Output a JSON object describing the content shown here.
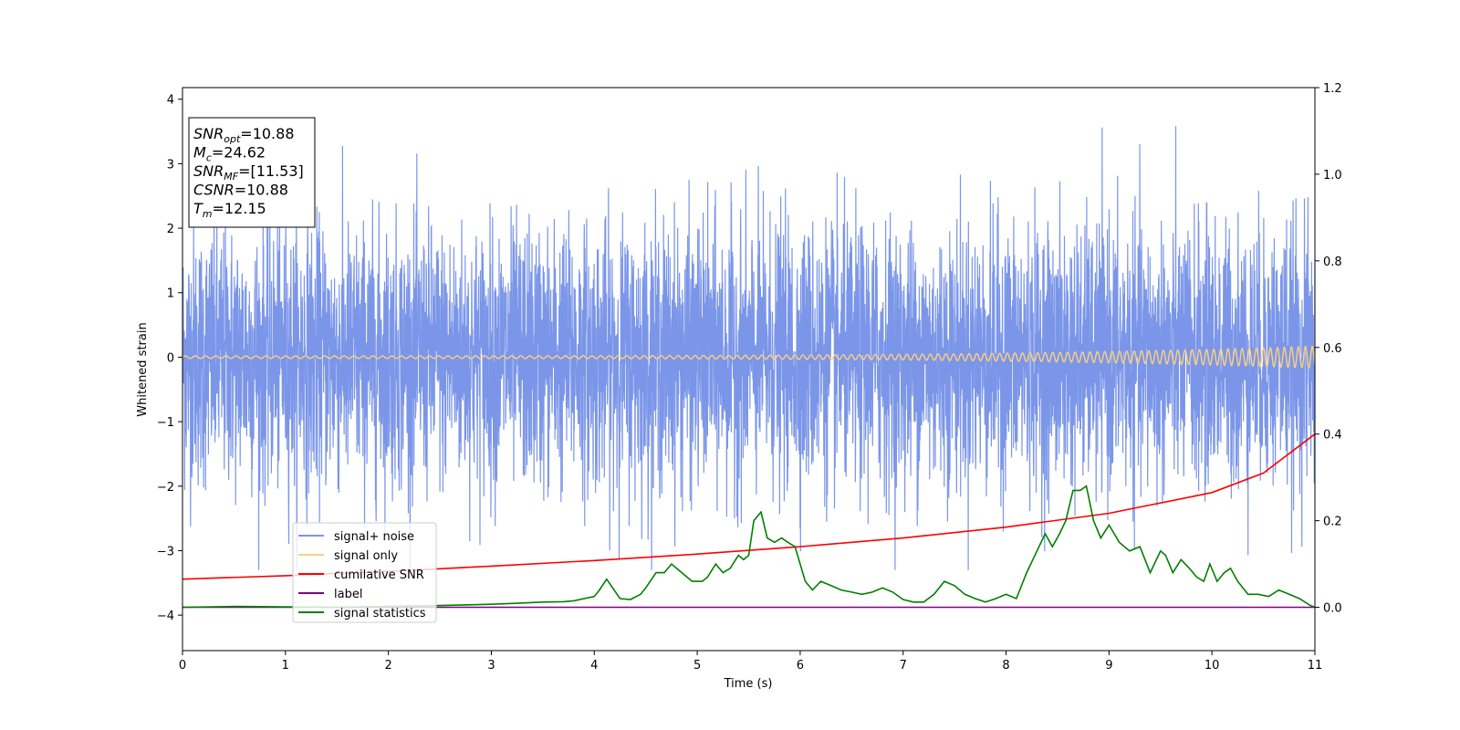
{
  "chart_data": {
    "type": "line",
    "title": "",
    "xlabel": "Time (s)",
    "ylabel": "Whitened strain",
    "xlim": [
      0,
      11
    ],
    "ylim_left": [
      -4.55,
      4.18
    ],
    "ylim_right": [
      -0.1,
      1.2
    ],
    "x_ticks": [
      "0",
      "1",
      "2",
      "3",
      "4",
      "5",
      "6",
      "7",
      "8",
      "9",
      "10",
      "11"
    ],
    "y_ticks_left": [
      "−4",
      "−3",
      "−2",
      "−1",
      "0",
      "1",
      "2",
      "3",
      "4"
    ],
    "y_ticks_right": [
      "0.0",
      "0.2",
      "0.4",
      "0.6",
      "0.8",
      "1.0",
      "1.2"
    ],
    "grid": false,
    "legend_position": "lower-left",
    "info_box": {
      "lines": [
        {
          "base": "SNR",
          "sub": "opt",
          "value": "=10.88"
        },
        {
          "base": "M",
          "sub": "c",
          "value": "=24.62"
        },
        {
          "base": "SNR",
          "sub": "MF",
          "value": "=[11.53]"
        },
        {
          "base": "CSNR",
          "sub": "",
          "value": "=10.88"
        },
        {
          "base": "T",
          "sub": "m",
          "value": "=12.15"
        }
      ]
    },
    "series": [
      {
        "name": "signal+ noise",
        "axis": "left",
        "color": "#7b96e8",
        "description_range": [
          -3.3,
          3.8
        ]
      },
      {
        "name": "signal only",
        "axis": "left",
        "color": "#ffcf7f",
        "amplitude_start": 0.02,
        "amplitude_end": 0.17
      },
      {
        "name": "cumilative SNR",
        "axis": "right",
        "color": "#ff0000",
        "x": [
          0,
          1,
          2,
          3,
          4,
          5,
          6,
          7,
          8,
          9,
          10,
          10.5,
          11
        ],
        "y": [
          0.065,
          0.073,
          0.083,
          0.095,
          0.108,
          0.123,
          0.14,
          0.16,
          0.185,
          0.217,
          0.265,
          0.31,
          0.4
        ]
      },
      {
        "name": "label",
        "axis": "right",
        "color": "#800080",
        "x": [
          0,
          11
        ],
        "y": [
          0.0,
          0.0
        ]
      },
      {
        "name": "signal statistics",
        "axis": "right",
        "color": "#008000",
        "x": [
          0,
          0.5,
          1,
          1.5,
          2,
          2.5,
          3,
          3.2,
          3.5,
          3.7,
          3.8,
          4.0,
          4.05,
          4.12,
          4.25,
          4.35,
          4.45,
          4.5,
          4.6,
          4.68,
          4.75,
          4.85,
          4.95,
          5.05,
          5.1,
          5.18,
          5.25,
          5.32,
          5.4,
          5.45,
          5.5,
          5.55,
          5.62,
          5.68,
          5.75,
          5.82,
          5.88,
          5.95,
          6.05,
          6.12,
          6.2,
          6.3,
          6.4,
          6.5,
          6.6,
          6.7,
          6.8,
          6.9,
          7.0,
          7.1,
          7.2,
          7.3,
          7.4,
          7.5,
          7.6,
          7.7,
          7.8,
          7.9,
          8.0,
          8.1,
          8.2,
          8.3,
          8.38,
          8.45,
          8.52,
          8.58,
          8.65,
          8.72,
          8.78,
          8.85,
          8.92,
          9.0,
          9.1,
          9.2,
          9.3,
          9.4,
          9.5,
          9.55,
          9.62,
          9.7,
          9.78,
          9.85,
          9.92,
          9.98,
          10.05,
          10.12,
          10.18,
          10.25,
          10.35,
          10.45,
          10.55,
          10.65,
          10.75,
          10.85,
          10.95,
          11.0
        ],
        "y": [
          0.0,
          0.002,
          0.001,
          0.0,
          0.002,
          0.004,
          0.007,
          0.009,
          0.012,
          0.013,
          0.015,
          0.025,
          0.04,
          0.065,
          0.02,
          0.018,
          0.03,
          0.045,
          0.08,
          0.08,
          0.1,
          0.08,
          0.06,
          0.06,
          0.07,
          0.1,
          0.08,
          0.09,
          0.12,
          0.11,
          0.12,
          0.2,
          0.22,
          0.16,
          0.15,
          0.16,
          0.15,
          0.14,
          0.06,
          0.04,
          0.06,
          0.05,
          0.04,
          0.035,
          0.03,
          0.035,
          0.045,
          0.035,
          0.018,
          0.012,
          0.012,
          0.03,
          0.06,
          0.05,
          0.03,
          0.02,
          0.012,
          0.02,
          0.03,
          0.02,
          0.08,
          0.13,
          0.17,
          0.14,
          0.17,
          0.2,
          0.27,
          0.27,
          0.28,
          0.2,
          0.16,
          0.19,
          0.15,
          0.13,
          0.14,
          0.08,
          0.13,
          0.12,
          0.08,
          0.11,
          0.09,
          0.07,
          0.06,
          0.1,
          0.06,
          0.08,
          0.09,
          0.06,
          0.03,
          0.03,
          0.025,
          0.04,
          0.03,
          0.02,
          0.005,
          0.0
        ]
      }
    ]
  }
}
